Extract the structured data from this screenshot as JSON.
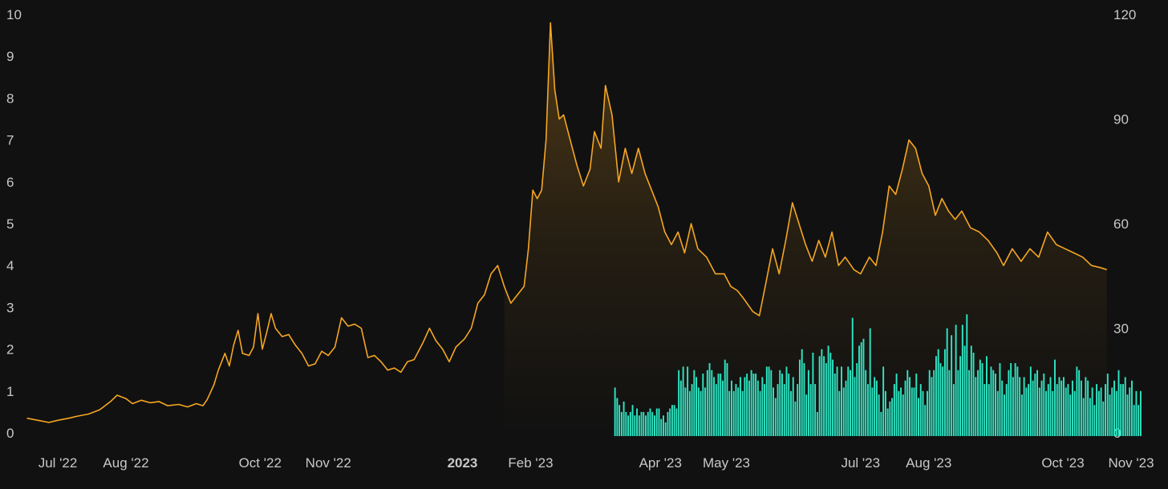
{
  "chart_data": {
    "type": "line",
    "title": "",
    "xlabel": "",
    "ylabel": "",
    "y_left_ticks": [
      "0",
      "1",
      "2",
      "3",
      "4",
      "5",
      "6",
      "7",
      "8",
      "9",
      "10"
    ],
    "y_right_ticks": [
      "0",
      "30",
      "60",
      "90",
      "120"
    ],
    "x_ticks": [
      {
        "label": "Jul '22",
        "date": "2022-07-01",
        "bold": false
      },
      {
        "label": "Aug '22",
        "date": "2022-08-01",
        "bold": false
      },
      {
        "label": "Oct '22",
        "date": "2022-10-01",
        "bold": false
      },
      {
        "label": "Nov '22",
        "date": "2022-11-01",
        "bold": false
      },
      {
        "label": "2023",
        "date": "2023-01-01",
        "bold": true
      },
      {
        "label": "Feb '23",
        "date": "2023-02-01",
        "bold": false
      },
      {
        "label": "Apr '23",
        "date": "2023-04-01",
        "bold": false
      },
      {
        "label": "May '23",
        "date": "2023-05-01",
        "bold": false
      },
      {
        "label": "Jul '23",
        "date": "2023-07-01",
        "bold": false
      },
      {
        "label": "Aug '23",
        "date": "2023-08-01",
        "bold": false
      },
      {
        "label": "Oct '23",
        "date": "2023-10-01",
        "bold": false
      },
      {
        "label": "Nov '23",
        "date": "2023-11-01",
        "bold": false
      }
    ],
    "ylim_left": [
      0,
      10
    ],
    "ylim_right": [
      0,
      120
    ],
    "grid": false,
    "colors": {
      "line": "#f5a623",
      "bars": "#2ee6c4",
      "background": "#111111",
      "text": "#c8c8c8"
    },
    "series": [
      {
        "type": "line",
        "axis": "left",
        "points": [
          [
            "2022-06-17",
            0.35
          ],
          [
            "2022-06-22",
            0.3
          ],
          [
            "2022-06-27",
            0.25
          ],
          [
            "2022-07-01",
            0.3
          ],
          [
            "2022-07-06",
            0.35
          ],
          [
            "2022-07-10",
            0.4
          ],
          [
            "2022-07-15",
            0.45
          ],
          [
            "2022-07-20",
            0.55
          ],
          [
            "2022-07-25",
            0.75
          ],
          [
            "2022-07-28",
            0.9
          ],
          [
            "2022-08-01",
            0.82
          ],
          [
            "2022-08-04",
            0.7
          ],
          [
            "2022-08-08",
            0.78
          ],
          [
            "2022-08-12",
            0.72
          ],
          [
            "2022-08-16",
            0.75
          ],
          [
            "2022-08-20",
            0.65
          ],
          [
            "2022-08-25",
            0.68
          ],
          [
            "2022-08-29",
            0.62
          ],
          [
            "2022-09-02",
            0.7
          ],
          [
            "2022-09-05",
            0.65
          ],
          [
            "2022-09-07",
            0.8
          ],
          [
            "2022-09-10",
            1.15
          ],
          [
            "2022-09-12",
            1.5
          ],
          [
            "2022-09-15",
            1.9
          ],
          [
            "2022-09-17",
            1.6
          ],
          [
            "2022-09-19",
            2.1
          ],
          [
            "2022-09-21",
            2.45
          ],
          [
            "2022-09-23",
            1.9
          ],
          [
            "2022-09-26",
            1.85
          ],
          [
            "2022-09-28",
            2.05
          ],
          [
            "2022-09-30",
            2.85
          ],
          [
            "2022-10-02",
            2.0
          ],
          [
            "2022-10-04",
            2.4
          ],
          [
            "2022-10-06",
            2.85
          ],
          [
            "2022-10-08",
            2.5
          ],
          [
            "2022-10-11",
            2.3
          ],
          [
            "2022-10-14",
            2.35
          ],
          [
            "2022-10-17",
            2.1
          ],
          [
            "2022-10-20",
            1.9
          ],
          [
            "2022-10-23",
            1.6
          ],
          [
            "2022-10-26",
            1.65
          ],
          [
            "2022-10-29",
            1.95
          ],
          [
            "2022-11-01",
            1.85
          ],
          [
            "2022-11-04",
            2.05
          ],
          [
            "2022-11-07",
            2.75
          ],
          [
            "2022-11-10",
            2.55
          ],
          [
            "2022-11-13",
            2.6
          ],
          [
            "2022-11-16",
            2.5
          ],
          [
            "2022-11-19",
            1.8
          ],
          [
            "2022-11-22",
            1.85
          ],
          [
            "2022-11-25",
            1.7
          ],
          [
            "2022-11-28",
            1.5
          ],
          [
            "2022-12-01",
            1.55
          ],
          [
            "2022-12-04",
            1.45
          ],
          [
            "2022-12-07",
            1.7
          ],
          [
            "2022-12-10",
            1.75
          ],
          [
            "2022-12-14",
            2.15
          ],
          [
            "2022-12-17",
            2.5
          ],
          [
            "2022-12-20",
            2.2
          ],
          [
            "2022-12-23",
            2.0
          ],
          [
            "2022-12-26",
            1.7
          ],
          [
            "2022-12-29",
            2.05
          ],
          [
            "2023-01-02",
            2.25
          ],
          [
            "2023-01-05",
            2.5
          ],
          [
            "2023-01-08",
            3.1
          ],
          [
            "2023-01-11",
            3.3
          ],
          [
            "2023-01-14",
            3.8
          ],
          [
            "2023-01-17",
            4.0
          ],
          [
            "2023-01-20",
            3.5
          ],
          [
            "2023-01-23",
            3.1
          ],
          [
            "2023-01-26",
            3.3
          ],
          [
            "2023-01-29",
            3.5
          ],
          [
            "2023-01-31",
            4.4
          ],
          [
            "2023-02-02",
            5.8
          ],
          [
            "2023-02-04",
            5.6
          ],
          [
            "2023-02-06",
            5.8
          ],
          [
            "2023-02-08",
            7.0
          ],
          [
            "2023-02-10",
            9.8
          ],
          [
            "2023-02-12",
            8.2
          ],
          [
            "2023-02-14",
            7.5
          ],
          [
            "2023-02-16",
            7.6
          ],
          [
            "2023-02-19",
            7.0
          ],
          [
            "2023-02-22",
            6.4
          ],
          [
            "2023-02-25",
            5.9
          ],
          [
            "2023-02-28",
            6.3
          ],
          [
            "2023-03-02",
            7.2
          ],
          [
            "2023-03-05",
            6.8
          ],
          [
            "2023-03-07",
            8.3
          ],
          [
            "2023-03-10",
            7.6
          ],
          [
            "2023-03-13",
            6.0
          ],
          [
            "2023-03-16",
            6.8
          ],
          [
            "2023-03-19",
            6.2
          ],
          [
            "2023-03-22",
            6.8
          ],
          [
            "2023-03-25",
            6.2
          ],
          [
            "2023-03-28",
            5.8
          ],
          [
            "2023-03-31",
            5.4
          ],
          [
            "2023-04-03",
            4.8
          ],
          [
            "2023-04-06",
            4.5
          ],
          [
            "2023-04-09",
            4.8
          ],
          [
            "2023-04-12",
            4.3
          ],
          [
            "2023-04-15",
            5.0
          ],
          [
            "2023-04-18",
            4.4
          ],
          [
            "2023-04-22",
            4.2
          ],
          [
            "2023-04-26",
            3.8
          ],
          [
            "2023-04-30",
            3.8
          ],
          [
            "2023-05-03",
            3.5
          ],
          [
            "2023-05-06",
            3.4
          ],
          [
            "2023-05-09",
            3.2
          ],
          [
            "2023-05-13",
            2.9
          ],
          [
            "2023-05-16",
            2.8
          ],
          [
            "2023-05-19",
            3.6
          ],
          [
            "2023-05-22",
            4.4
          ],
          [
            "2023-05-25",
            3.8
          ],
          [
            "2023-05-28",
            4.6
          ],
          [
            "2023-05-31",
            5.5
          ],
          [
            "2023-06-03",
            5.0
          ],
          [
            "2023-06-06",
            4.5
          ],
          [
            "2023-06-09",
            4.1
          ],
          [
            "2023-06-12",
            4.6
          ],
          [
            "2023-06-15",
            4.2
          ],
          [
            "2023-06-18",
            4.8
          ],
          [
            "2023-06-21",
            4.0
          ],
          [
            "2023-06-24",
            4.2
          ],
          [
            "2023-06-28",
            3.9
          ],
          [
            "2023-07-01",
            3.8
          ],
          [
            "2023-07-05",
            4.2
          ],
          [
            "2023-07-08",
            4.0
          ],
          [
            "2023-07-11",
            4.8
          ],
          [
            "2023-07-14",
            5.9
          ],
          [
            "2023-07-17",
            5.7
          ],
          [
            "2023-07-20",
            6.3
          ],
          [
            "2023-07-23",
            7.0
          ],
          [
            "2023-07-26",
            6.8
          ],
          [
            "2023-07-29",
            6.2
          ],
          [
            "2023-08-01",
            5.9
          ],
          [
            "2023-08-04",
            5.2
          ],
          [
            "2023-08-07",
            5.6
          ],
          [
            "2023-08-10",
            5.3
          ],
          [
            "2023-08-13",
            5.1
          ],
          [
            "2023-08-16",
            5.3
          ],
          [
            "2023-08-20",
            4.9
          ],
          [
            "2023-08-24",
            4.8
          ],
          [
            "2023-08-28",
            4.6
          ],
          [
            "2023-09-01",
            4.3
          ],
          [
            "2023-09-04",
            4.0
          ],
          [
            "2023-09-08",
            4.4
          ],
          [
            "2023-09-12",
            4.1
          ],
          [
            "2023-09-16",
            4.4
          ],
          [
            "2023-09-20",
            4.2
          ],
          [
            "2023-09-24",
            4.8
          ],
          [
            "2023-09-28",
            4.5
          ],
          [
            "2023-10-02",
            4.4
          ],
          [
            "2023-10-06",
            4.3
          ],
          [
            "2023-10-10",
            4.2
          ],
          [
            "2023-10-14",
            4.0
          ],
          [
            "2023-10-18",
            3.95
          ],
          [
            "2023-10-21",
            3.9
          ]
        ]
      },
      {
        "type": "bar",
        "axis": "right",
        "start_date": "2023-03-11",
        "values": [
          13,
          10,
          8,
          6,
          9,
          6,
          5,
          6,
          8,
          5,
          7,
          5,
          6,
          6,
          5,
          6,
          7,
          6,
          5,
          7,
          7,
          4,
          5,
          3,
          6,
          7,
          8,
          8,
          7,
          18,
          15,
          19,
          13,
          19,
          12,
          14,
          18,
          16,
          13,
          12,
          17,
          13,
          18,
          20,
          18,
          16,
          14,
          17,
          17,
          15,
          21,
          20,
          12,
          15,
          12,
          14,
          13,
          16,
          12,
          16,
          17,
          15,
          18,
          17,
          17,
          15,
          12,
          16,
          14,
          19,
          19,
          18,
          13,
          10,
          14,
          18,
          17,
          14,
          19,
          17,
          12,
          16,
          9,
          14,
          21,
          24,
          20,
          11,
          18,
          14,
          23,
          14,
          6,
          22,
          24,
          22,
          20,
          25,
          23,
          21,
          17,
          19,
          12,
          19,
          13,
          15,
          19,
          18,
          33,
          16,
          20,
          25,
          26,
          27,
          18,
          14,
          30,
          13,
          16,
          15,
          11,
          6,
          19,
          12,
          7,
          9,
          10,
          14,
          17,
          12,
          13,
          11,
          15,
          18,
          16,
          13,
          13,
          17,
          10,
          14,
          12,
          8,
          12,
          18,
          16,
          18,
          22,
          24,
          20,
          19,
          24,
          30,
          18,
          28,
          14,
          31,
          18,
          22,
          31,
          25,
          34,
          18,
          25,
          23,
          16,
          18,
          21,
          20,
          14,
          22,
          14,
          19,
          18,
          17,
          12,
          20,
          15,
          11,
          14,
          18,
          20,
          16,
          20,
          19,
          16,
          11,
          16,
          13,
          14,
          19,
          15,
          17,
          18,
          13,
          15,
          17,
          12,
          14,
          16,
          12,
          21,
          14,
          16,
          15,
          16,
          13,
          14,
          11,
          15,
          12,
          19,
          18,
          15,
          10,
          16,
          15,
          10,
          13,
          8,
          14,
          12,
          13,
          9,
          14,
          17,
          11,
          13,
          15,
          12,
          18,
          14,
          14,
          16,
          11,
          13,
          15,
          8,
          12,
          8,
          12
        ],
        "values_scale_max": 120
      }
    ]
  }
}
